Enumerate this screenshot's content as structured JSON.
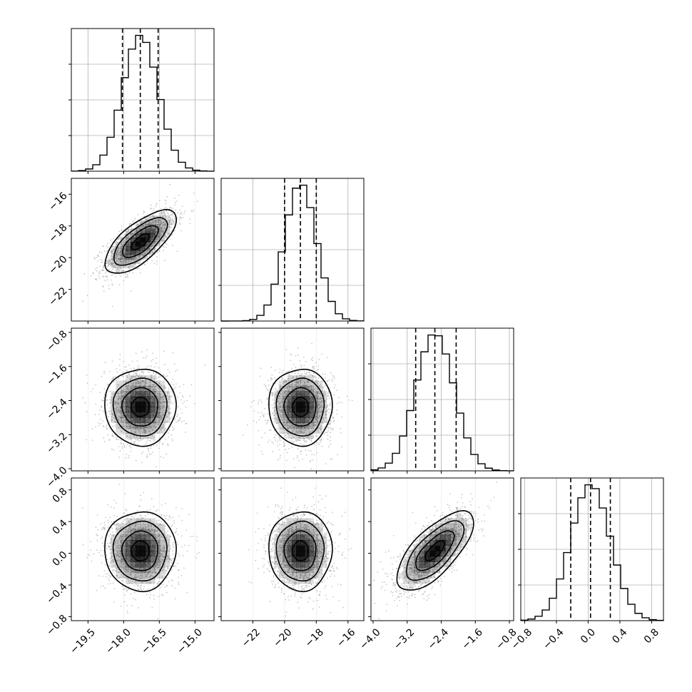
{
  "chart_data": {
    "type": "corner",
    "title": "",
    "grid": true,
    "parameters": [
      {
        "label": "",
        "range": [
          -20.2,
          -14.2
        ],
        "ticks": [
          "−19.5",
          "−18.0",
          "−16.5",
          "−15.0"
        ],
        "tick_values": [
          -19.5,
          -18.0,
          -16.5,
          -15.0
        ],
        "mean": -17.3,
        "sigma": 0.75,
        "quantiles": [
          -18.05,
          -17.3,
          -16.55
        ]
      },
      {
        "label": "",
        "range": [
          -24.0,
          -15.0
        ],
        "ticks": [
          "−22",
          "−20",
          "−18",
          "−16"
        ],
        "tick_values": [
          -22,
          -20,
          -18,
          -16
        ],
        "mean": -19.0,
        "sigma": 1.0,
        "quantiles": [
          -20.0,
          -19.0,
          -18.0
        ]
      },
      {
        "label": "",
        "range": [
          -4.05,
          -0.7
        ],
        "ticks": [
          "−4.0",
          "−3.2",
          "−2.4",
          "−1.6",
          "−0.8"
        ],
        "tick_values": [
          -4.0,
          -3.2,
          -2.4,
          -1.6,
          -0.8
        ],
        "mean": -2.55,
        "sigma": 0.45,
        "quantiles": [
          -3.0,
          -2.55,
          -2.05
        ]
      },
      {
        "label": "",
        "range": [
          -0.85,
          0.95
        ],
        "ticks": [
          "−0.8",
          "−0.4",
          "0.0",
          "0.4",
          "0.8"
        ],
        "tick_values": [
          -0.8,
          -0.4,
          0.0,
          0.4,
          0.8
        ],
        "mean": 0.03,
        "sigma": 0.25,
        "quantiles": [
          -0.22,
          0.03,
          0.28
        ]
      }
    ],
    "correlations": [
      {
        "i": 1,
        "j": 0,
        "rho": 0.7
      },
      {
        "i": 2,
        "j": 0,
        "rho": 0.0
      },
      {
        "i": 2,
        "j": 1,
        "rho": 0.0
      },
      {
        "i": 3,
        "j": 0,
        "rho": 0.0
      },
      {
        "i": 3,
        "j": 1,
        "rho": 0.0
      },
      {
        "i": 3,
        "j": 2,
        "rho": 0.7
      }
    ],
    "contour_levels_sigma": [
      0.5,
      1.0,
      1.5,
      2.0
    ],
    "histogram_bins": 20,
    "colors": {
      "line": "#000000",
      "grid": "#b0b0b0",
      "points": "#9a9a9a",
      "density": "#000000"
    }
  }
}
